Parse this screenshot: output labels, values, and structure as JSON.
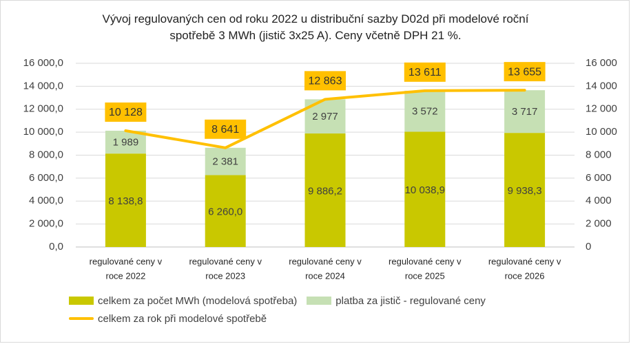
{
  "chart_data": {
    "type": "bar",
    "title_lines": [
      "Vývoj regulovaných cen od roku 2022 u distribuční sazby D02d při modelové roční",
      "spotřebě 3 MWh (jistič 3x25 A). Ceny včetně DPH 21 %."
    ],
    "categories": [
      [
        "regulované ceny v",
        "roce 2022"
      ],
      [
        "regulované ceny v",
        "roce 2023"
      ],
      [
        "regulované ceny v",
        "roce 2024"
      ],
      [
        "regulované ceny v",
        "roce 2025"
      ],
      [
        "regulované ceny v",
        "roce 2026"
      ]
    ],
    "stacked": true,
    "series": [
      {
        "name": "celkem za počet MWh (modelová spotřeba)",
        "type": "bar",
        "color": "#c9c800",
        "values": [
          8138.8,
          6260.0,
          9886.2,
          10038.9,
          9938.3
        ],
        "labels": [
          "8 138,8",
          "6 260,0",
          "9 886,2",
          "10 038,9",
          "9 938,3"
        ]
      },
      {
        "name": "platba za jistič - regulované ceny",
        "type": "bar",
        "color": "#c6e0b4",
        "values": [
          1989,
          2381,
          2977,
          3572,
          3717
        ],
        "labels": [
          "1 989",
          "2 381",
          "2 977",
          "3 572",
          "3 717"
        ]
      },
      {
        "name": "celkem za rok při modelové spotřebě",
        "type": "line",
        "axis": "right",
        "color": "#ffc000",
        "values": [
          10128,
          8641,
          12863,
          13611,
          13655
        ],
        "labels": [
          "10 128",
          "8 641",
          "12 863",
          "13 611",
          "13 655"
        ]
      }
    ],
    "ylim": [
      0,
      16000
    ],
    "y_ticks_left": [
      "0,0",
      "2 000,0",
      "4 000,0",
      "6 000,0",
      "8 000,0",
      "10 000,0",
      "12 000,0",
      "14 000,0",
      "16 000,0"
    ],
    "y_ticks_right": [
      "0",
      "2 000",
      "4 000",
      "6 000",
      "8 000",
      "10 000",
      "12 000",
      "14 000",
      "16 000"
    ],
    "grid": true,
    "legend_position": "bottom"
  }
}
